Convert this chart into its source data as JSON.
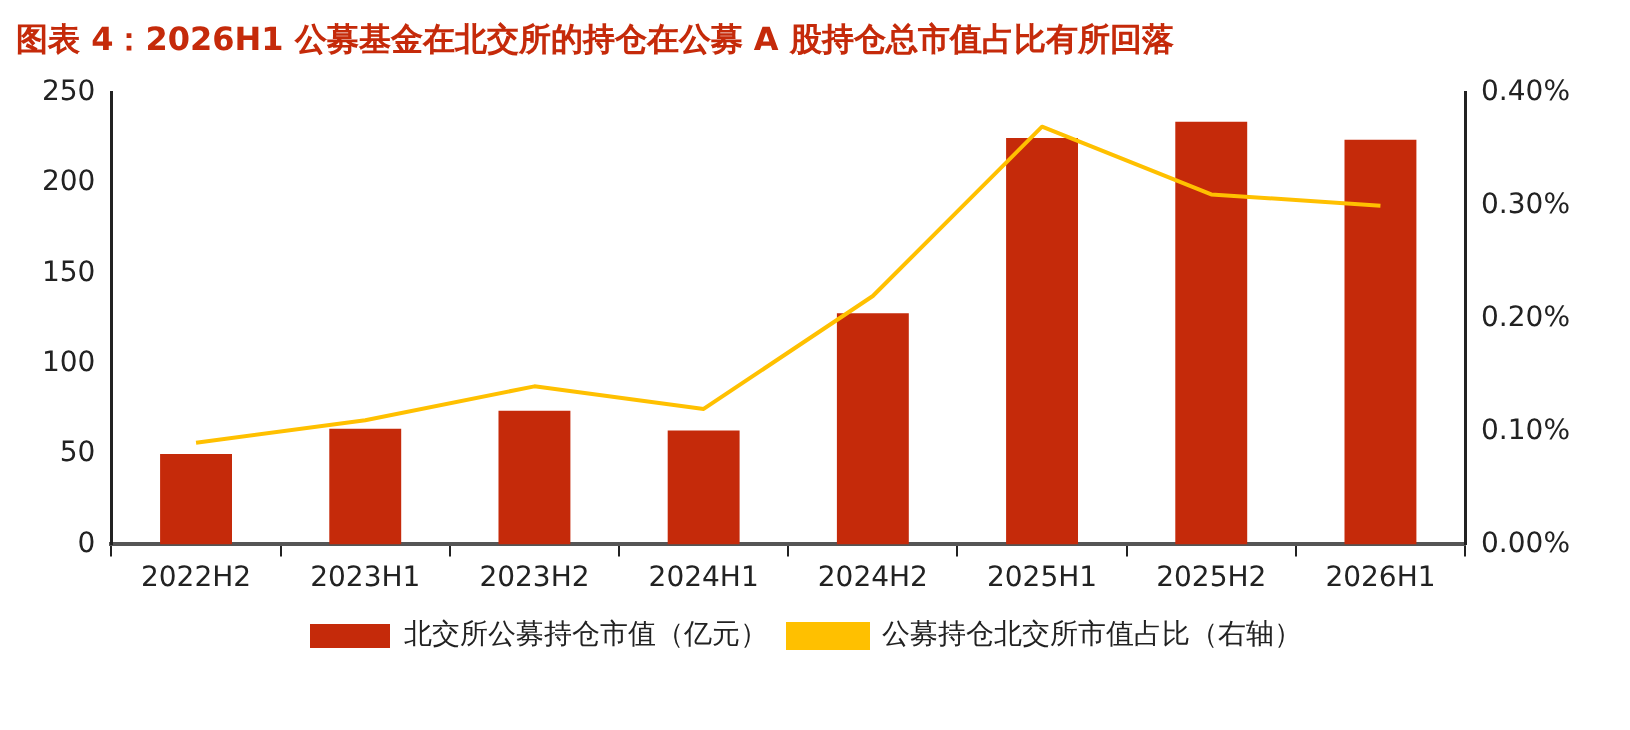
{
  "chart_data": {
    "type": "bar",
    "title": "图表 4：2026H1 公募基金在北交所的持仓在公募 A 股持仓总市值占比有所回落",
    "categories": [
      "2022H2",
      "2023H1",
      "2023H2",
      "2024H1",
      "2024H2",
      "2025H1",
      "2025H2",
      "2026H1"
    ],
    "series": [
      {
        "name": "北交所公募持仓市值（亿元）",
        "color": "#c52a0a",
        "values": [
          50,
          64,
          74,
          63,
          128,
          225,
          234,
          224
        ]
      },
      {
        "name": "公募持仓北交所市值占比（右轴）",
        "type": "line",
        "axis": "y2",
        "color": "#ffc000",
        "values": [
          0.09,
          0.11,
          0.14,
          0.12,
          0.22,
          0.37,
          0.31,
          0.3
        ]
      }
    ],
    "ylim": [
      0,
      250
    ],
    "yticks": [
      0,
      50,
      100,
      150,
      200,
      250
    ],
    "y2lim": [
      0,
      0.4
    ],
    "y2ticks": [
      {
        "value": 0,
        "label": "0.00%"
      },
      {
        "value": 0.1,
        "label": "0.10%"
      },
      {
        "value": 0.2,
        "label": "0.20%"
      },
      {
        "value": 0.3,
        "label": "0.30%"
      },
      {
        "value": 0.4,
        "label": "0.40%"
      }
    ],
    "grid": false,
    "legend": "bottom",
    "marker": "none",
    "line_style": "solid"
  }
}
